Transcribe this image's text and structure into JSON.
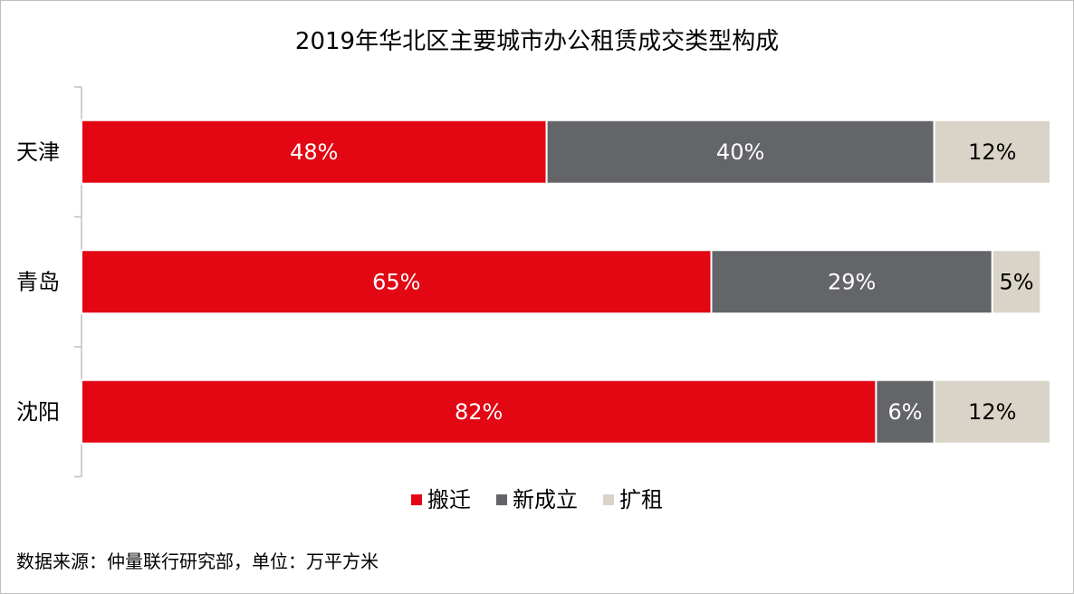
{
  "chart_data": {
    "type": "bar",
    "orientation": "horizontal",
    "stacked": "percent",
    "title": "2019年华北区主要城市办公租赁成交类型构成",
    "categories": [
      "天津",
      "青岛",
      "沈阳"
    ],
    "series": [
      {
        "name": "搬迁",
        "values": [
          48,
          65,
          82
        ],
        "labels": [
          "48%",
          "65%",
          "82%"
        ],
        "color": "#e30613",
        "label_color": "#ffffff"
      },
      {
        "name": "新成立",
        "values": [
          40,
          29,
          6
        ],
        "labels": [
          "40%",
          "29%",
          "6%"
        ],
        "color": "#636569",
        "label_color": "#ffffff"
      },
      {
        "name": "扩租",
        "values": [
          12,
          5,
          12
        ],
        "labels": [
          "12%",
          "5%",
          "12%"
        ],
        "color": "#d9d4c7",
        "label_color": "#000000"
      }
    ],
    "xlim": [
      0,
      100
    ],
    "grid": false,
    "legend_position": "bottom"
  },
  "footer": {
    "source": "数据来源：仲量联行研究部，单位：万平方米"
  }
}
